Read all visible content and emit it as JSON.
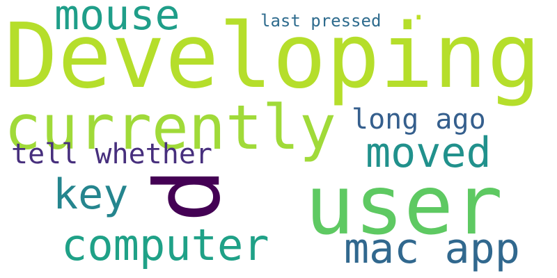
{
  "words": {
    "w1": "Developing",
    "w2": "user",
    "w3": "currently",
    "w4": "p",
    "w5": "computer",
    "w6": "mac app",
    "w7": "moved",
    "w8": "key",
    "w9": "mouse",
    "w10": "tell whether",
    "w11": "long ago",
    "w12": "last pressed",
    "w13": "."
  },
  "colors": {
    "w1": "#b5de2b",
    "w2": "#5ec962",
    "w3": "#a0da39",
    "w4": "#440154",
    "w5": "#1fa187",
    "w6": "#31688e",
    "w7": "#21918c",
    "w8": "#25858e",
    "w9": "#1f9e89",
    "w10": "#472f7d",
    "w11": "#355f8d",
    "w12": "#2f6c8e",
    "w13": "#bddf26"
  }
}
